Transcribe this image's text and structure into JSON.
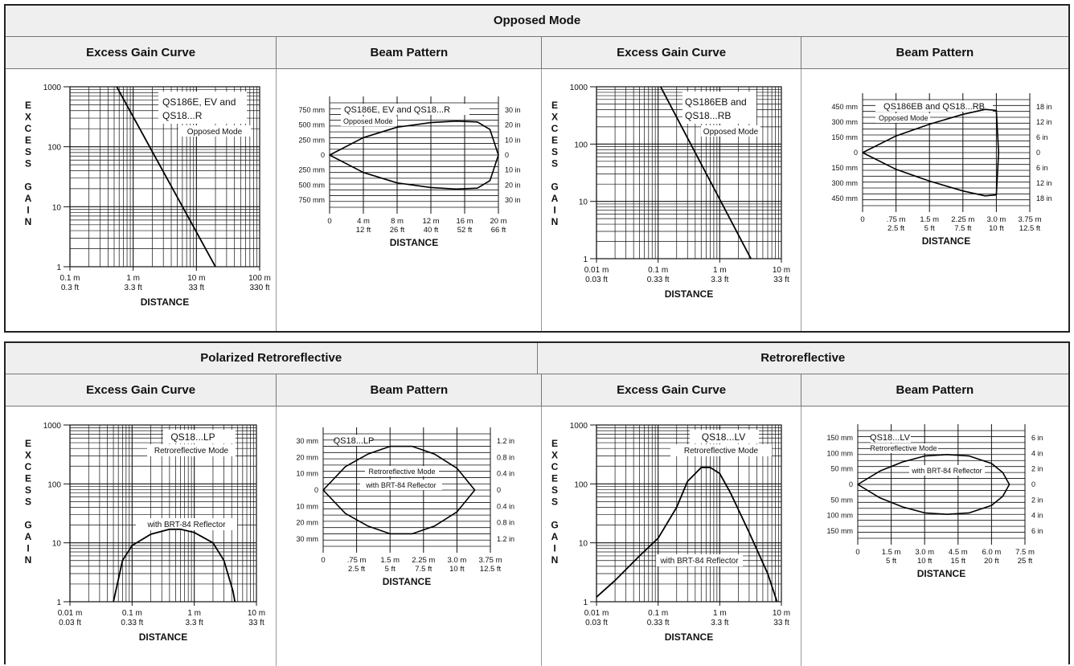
{
  "sections": {
    "top": {
      "title": "Opposed Mode"
    },
    "bottom_left": {
      "title": "Polarized Retroreflective"
    },
    "bottom_right": {
      "title": "Retroreflective"
    }
  },
  "column_headers": [
    "Excess Gain Curve",
    "Beam Pattern",
    "Excess Gain Curve",
    "Beam Pattern"
  ],
  "chart_data": [
    {
      "type": "line",
      "kind": "excess_gain",
      "xlabel": "DISTANCE",
      "ylabel": "EXCESS GAIN",
      "xscale": "log",
      "yscale": "log",
      "xlim_m": [
        0.1,
        100
      ],
      "ylim": [
        1,
        1000
      ],
      "xticks": [
        [
          "0.1 m",
          "0.3 ft"
        ],
        [
          "1 m",
          "3.3 ft"
        ],
        [
          "10 m",
          "33 ft"
        ],
        [
          "100 m",
          "330 ft"
        ]
      ],
      "yticks": [
        "1000",
        "100",
        "10",
        "1"
      ],
      "annotations": [
        "QS186E, EV and",
        "QS18...R",
        "Opposed Mode"
      ],
      "series": [
        {
          "x_m": [
            0.55,
            20
          ],
          "y": [
            1000,
            1
          ]
        }
      ]
    },
    {
      "type": "line",
      "kind": "beam_pattern",
      "xlabel": "DISTANCE",
      "xlim_m": [
        0,
        20
      ],
      "ylim_mm": [
        -900,
        900
      ],
      "xticks": [
        [
          "0",
          ""
        ],
        [
          "4 m",
          "12 ft"
        ],
        [
          "8 m",
          "26 ft"
        ],
        [
          "12 m",
          "40 ft"
        ],
        [
          "16 m",
          "52 ft"
        ],
        [
          "20 m",
          "66 ft"
        ]
      ],
      "yticks_left": [
        "750 mm",
        "500 mm",
        "250 mm",
        "0",
        "250 mm",
        "500 mm",
        "750 mm"
      ],
      "yticks_right": [
        "30 in",
        "20 in",
        "10 in",
        "0",
        "10 in",
        "20 in",
        "30 in"
      ],
      "annotations": [
        "QS186E, EV and QS18...R",
        "Opposed Mode"
      ],
      "series": [
        {
          "x_m": [
            0,
            4,
            8,
            12,
            15,
            17.5,
            19,
            20
          ],
          "half_width_mm": [
            0,
            300,
            480,
            560,
            585,
            570,
            440,
            0
          ]
        }
      ]
    },
    {
      "type": "line",
      "kind": "excess_gain",
      "xlabel": "DISTANCE",
      "ylabel": "EXCESS GAIN",
      "xscale": "log",
      "yscale": "log",
      "xlim_m": [
        0.01,
        10
      ],
      "ylim": [
        1,
        1000
      ],
      "xticks": [
        [
          "0.01 m",
          "0.03 ft"
        ],
        [
          "0.1 m",
          "0.33 ft"
        ],
        [
          "1 m",
          "3.3 ft"
        ],
        [
          "10 m",
          "33 ft"
        ]
      ],
      "yticks": [
        "1000",
        "100",
        "10",
        "1"
      ],
      "annotations": [
        "QS186EB and",
        "QS18...RB",
        "Opposed Mode"
      ],
      "series": [
        {
          "x_m": [
            0.11,
            3.2
          ],
          "y": [
            1000,
            1
          ]
        }
      ]
    },
    {
      "type": "line",
      "kind": "beam_pattern",
      "xlabel": "DISTANCE",
      "xlim_m": [
        0,
        3.75
      ],
      "ylim_mm": [
        -540,
        540
      ],
      "xticks": [
        [
          "0",
          ""
        ],
        [
          ".75 m",
          "2.5 ft"
        ],
        [
          "1.5 m",
          "5 ft"
        ],
        [
          "2.25 m",
          "7.5 ft"
        ],
        [
          "3.0 m",
          "10 ft"
        ],
        [
          "3.75 m",
          "12.5 ft"
        ]
      ],
      "yticks_left": [
        "450 mm",
        "300 mm",
        "150 mm",
        "0",
        "150 mm",
        "300 mm",
        "450 mm"
      ],
      "yticks_right": [
        "18 in",
        "12 in",
        "6 in",
        "0",
        "6 in",
        "12 in",
        "18 in"
      ],
      "annotations": [
        "QS186EB and QS18...RB",
        "Opposed Mode"
      ],
      "series": [
        {
          "x_m": [
            0,
            0.75,
            1.5,
            2.25,
            2.75,
            3.0,
            3.05
          ],
          "half_width_mm": [
            0,
            170,
            290,
            390,
            440,
            430,
            0
          ]
        }
      ]
    },
    {
      "type": "line",
      "kind": "excess_gain",
      "xlabel": "DISTANCE",
      "ylabel": "EXCESS GAIN",
      "xscale": "log",
      "yscale": "log",
      "xlim_m": [
        0.01,
        10
      ],
      "ylim": [
        1,
        1000
      ],
      "xticks": [
        [
          "0.01 m",
          "0.03 ft"
        ],
        [
          "0.1 m",
          "0.33 ft"
        ],
        [
          "1 m",
          "3.3 ft"
        ],
        [
          "10 m",
          "33 ft"
        ]
      ],
      "yticks": [
        "1000",
        "100",
        "10",
        "1"
      ],
      "annotations": [
        "QS18...LP",
        "Retroreflective Mode",
        "with BRT-84 Reflector"
      ],
      "series": [
        {
          "x_m": [
            0.05,
            0.07,
            0.1,
            0.2,
            0.4,
            0.6,
            1,
            2,
            3,
            4.2,
            4.5
          ],
          "y": [
            1,
            5,
            9,
            14,
            17,
            17,
            15,
            10,
            5,
            1.5,
            1
          ]
        }
      ]
    },
    {
      "type": "line",
      "kind": "beam_pattern",
      "xlabel": "DISTANCE",
      "xlim_m": [
        0,
        3.75
      ],
      "ylim_mm": [
        -36,
        36
      ],
      "xticks": [
        [
          "0",
          ""
        ],
        [
          ".75 m",
          "2.5 ft"
        ],
        [
          "1.5 m",
          "5 ft"
        ],
        [
          "2.25 m",
          "7.5 ft"
        ],
        [
          "3.0 m",
          "10 ft"
        ],
        [
          "3.75 m",
          "12.5 ft"
        ]
      ],
      "yticks_left": [
        "30 mm",
        "20 mm",
        "10 mm",
        "0",
        "10 mm",
        "20 mm",
        "30 mm"
      ],
      "yticks_right": [
        "1.2 in",
        "0.8 in",
        "0.4 in",
        "0",
        "0.4 in",
        "0.8 in",
        "1.2 in"
      ],
      "annotations": [
        "QS18...LP",
        "Retroreflective Mode",
        "with BRT-84 Reflector"
      ],
      "series": [
        {
          "x_m": [
            0,
            0.5,
            1,
            1.5,
            2.0,
            2.5,
            3.0,
            3.4
          ],
          "half_width_mm": [
            0,
            15,
            23,
            28,
            28,
            23,
            14,
            0
          ]
        }
      ]
    },
    {
      "type": "line",
      "kind": "excess_gain",
      "xlabel": "DISTANCE",
      "ylabel": "EXCESS GAIN",
      "xscale": "log",
      "yscale": "log",
      "xlim_m": [
        0.01,
        10
      ],
      "ylim": [
        1,
        1000
      ],
      "xticks": [
        [
          "0.01 m",
          "0.03 ft"
        ],
        [
          "0.1 m",
          "0.33 ft"
        ],
        [
          "1 m",
          "3.3 ft"
        ],
        [
          "10 m",
          "33 ft"
        ]
      ],
      "yticks": [
        "1000",
        "100",
        "10",
        "1"
      ],
      "annotations": [
        "QS18...LV",
        "Retroreflective Mode",
        "with BRT-84 Reflector"
      ],
      "series": [
        {
          "x_m": [
            0.01,
            0.02,
            0.05,
            0.1,
            0.2,
            0.3,
            0.5,
            0.7,
            1.0,
            1.5,
            3,
            6,
            8.5
          ],
          "y": [
            1.2,
            2.3,
            6,
            12,
            40,
            110,
            190,
            190,
            150,
            70,
            15,
            3,
            1
          ]
        }
      ]
    },
    {
      "type": "line",
      "kind": "beam_pattern",
      "xlabel": "DISTANCE",
      "xlim_m": [
        0,
        7.5
      ],
      "ylim_mm": [
        -180,
        180
      ],
      "xticks": [
        [
          "0",
          ""
        ],
        [
          "1.5 m",
          "5 ft"
        ],
        [
          "3.0 m",
          "10 ft"
        ],
        [
          "4.5 m",
          "15 ft"
        ],
        [
          "6.0 m",
          "20 ft"
        ],
        [
          "7.5 m",
          "25 ft"
        ]
      ],
      "yticks_left": [
        "150 mm",
        "100 mm",
        "50 mm",
        "0",
        "50 mm",
        "100 mm",
        "150 mm"
      ],
      "yticks_right": [
        "6 in",
        "4 in",
        "2 in",
        "0",
        "2 in",
        "4 in",
        "6 in"
      ],
      "annotations": [
        "QS18...LV",
        "Retroreflective Mode",
        "with BRT-84 Reflector"
      ],
      "series": [
        {
          "x_m": [
            0,
            1,
            2,
            3,
            4,
            5,
            6,
            6.5,
            6.8
          ],
          "half_width_mm": [
            0,
            45,
            75,
            95,
            100,
            95,
            70,
            40,
            0
          ]
        }
      ]
    }
  ]
}
